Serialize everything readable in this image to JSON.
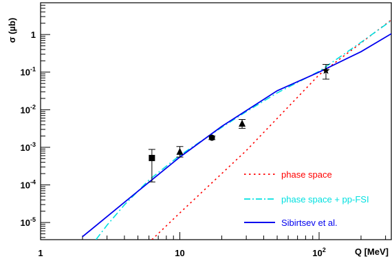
{
  "chart_data": {
    "type": "scatter",
    "title": "",
    "xlabel": "Q [MeV]",
    "ylabel": "σ (µb)",
    "xscale": "log",
    "yscale": "log",
    "xlim": [
      1,
      330
    ],
    "ylim": [
      3.5e-06,
      7
    ],
    "grid": false,
    "legend_position": "bottom-right",
    "x_ticks": [
      {
        "value": 1,
        "label": "1"
      },
      {
        "value": 10,
        "label": "10"
      },
      {
        "value": 100,
        "label": "10",
        "sup": "2"
      }
    ],
    "y_ticks": [
      {
        "value": 1e-05,
        "label": "10",
        "sup": "-5"
      },
      {
        "value": 0.0001,
        "label": "10",
        "sup": "-4"
      },
      {
        "value": 0.001,
        "label": "10",
        "sup": "-3"
      },
      {
        "value": 0.01,
        "label": "10",
        "sup": "-2"
      },
      {
        "value": 0.1,
        "label": "10",
        "sup": "-1"
      },
      {
        "value": 1,
        "label": "1",
        "sup": ""
      }
    ],
    "data_points": [
      {
        "marker": "square",
        "x": 6.3,
        "y": 0.00052,
        "y_low": 0.00012,
        "y_high": 0.00088
      },
      {
        "marker": "triangle",
        "x": 10,
        "y": 0.00075,
        "y_low": 0.00055,
        "y_high": 0.00105
      },
      {
        "marker": "circle",
        "x": 17,
        "y": 0.0018,
        "y_low": 0.0016,
        "y_high": 0.002
      },
      {
        "marker": "triangle",
        "x": 28,
        "y": 0.0042,
        "y_low": 0.0032,
        "y_high": 0.0055
      },
      {
        "marker": "star",
        "x": 112,
        "y": 0.11,
        "y_low": 0.065,
        "y_high": 0.16
      }
    ],
    "series": [
      {
        "name": "phase space",
        "color": "#ff0000",
        "style": "dotted",
        "points": [
          [
            6.3,
            3.5e-06
          ],
          [
            10,
            1.8e-05
          ],
          [
            30,
            0.00082
          ],
          [
            100,
            0.085
          ],
          [
            330,
            2.45
          ]
        ]
      },
      {
        "name": "phase space + pp-FSI",
        "color": "#00e0e0",
        "style": "dashdot",
        "points": [
          [
            2.5,
            3.5e-06
          ],
          [
            3,
            8.5e-06
          ],
          [
            4,
            2.95e-05
          ],
          [
            6,
            0.000135
          ],
          [
            10,
            0.00061
          ],
          [
            20,
            0.0034
          ],
          [
            30,
            0.0089
          ],
          [
            50,
            0.028
          ],
          [
            100,
            0.105
          ],
          [
            200,
            0.62
          ],
          [
            330,
            2.35
          ]
        ]
      },
      {
        "name": "Sibirtsev et al.",
        "color": "#0000ee",
        "style": "solid",
        "points": [
          [
            2,
            4.2e-06
          ],
          [
            5,
            6.8e-05
          ],
          [
            10,
            0.00055
          ],
          [
            20,
            0.0036
          ],
          [
            50,
            0.032
          ],
          [
            100,
            0.1
          ],
          [
            200,
            0.35
          ],
          [
            330,
            1.05
          ]
        ]
      }
    ]
  }
}
